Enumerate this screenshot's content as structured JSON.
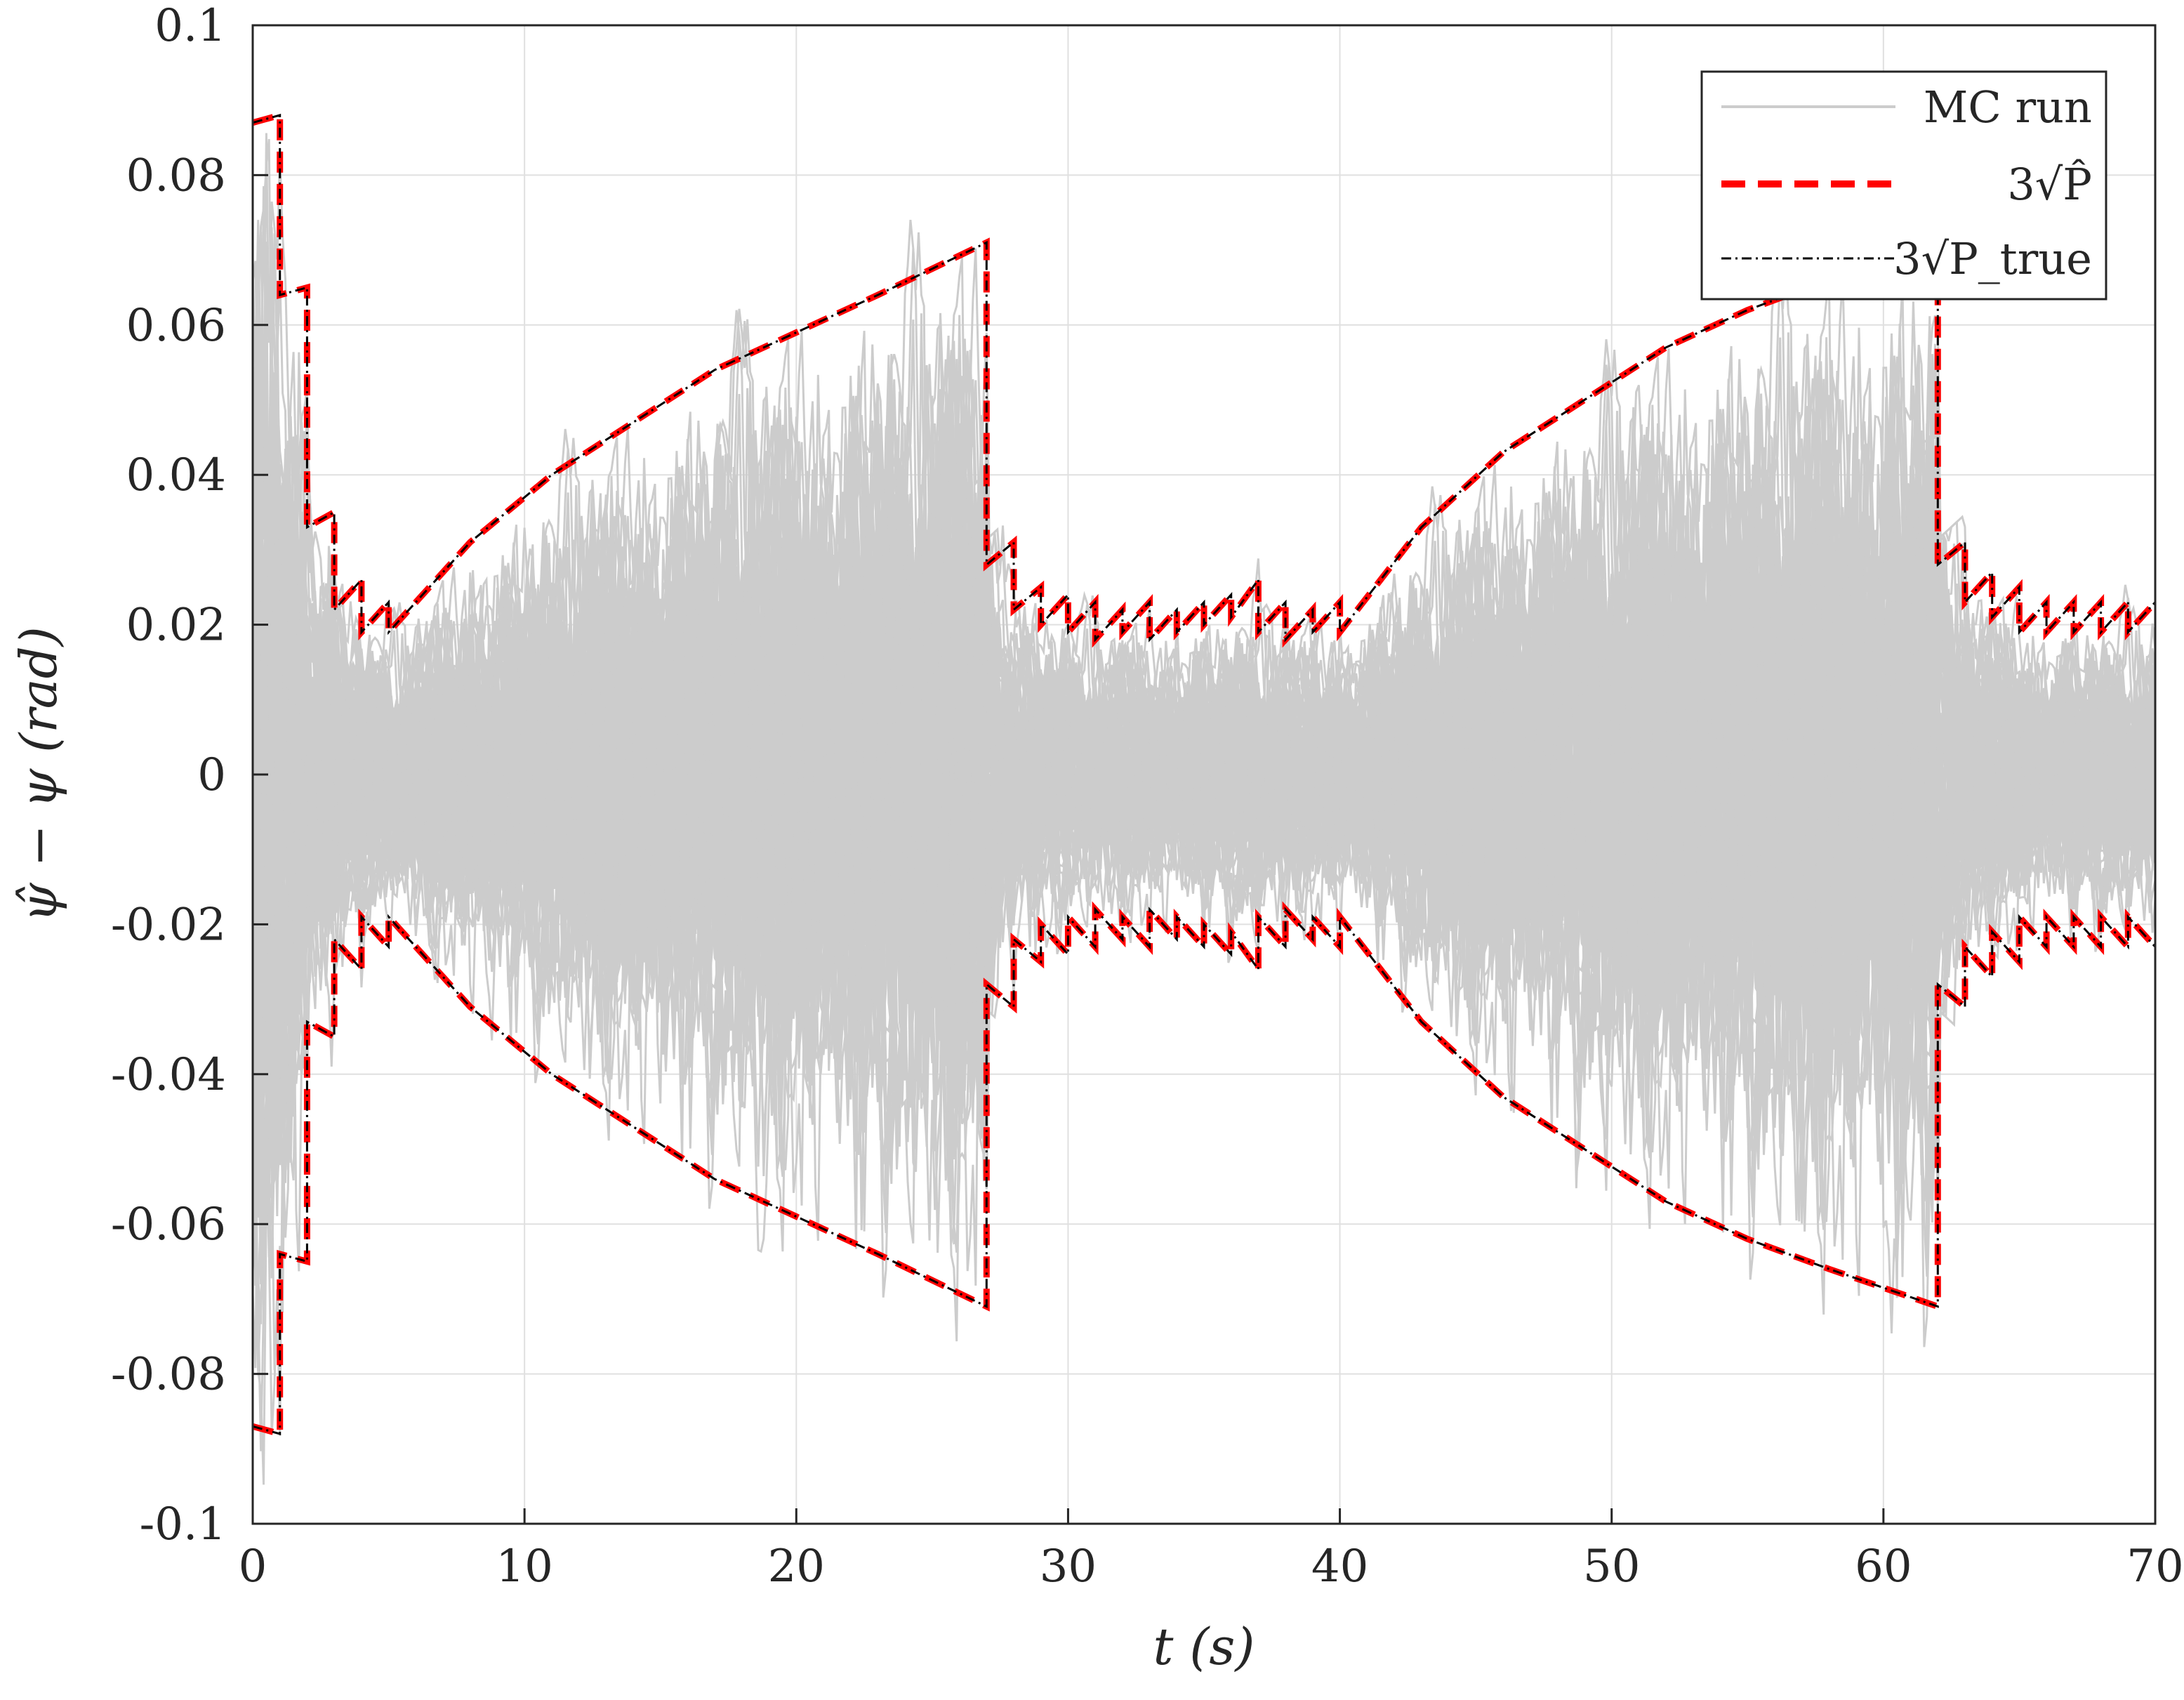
{
  "chart_data": {
    "type": "line",
    "title": "",
    "xlabel": "t (s)",
    "ylabel": "ψ̂ − ψ (rad)",
    "xlim": [
      0,
      70
    ],
    "ylim": [
      -0.1,
      0.1
    ],
    "x_ticks": [
      0,
      10,
      20,
      30,
      40,
      50,
      60,
      70
    ],
    "x_tick_labels": [
      "0",
      "10",
      "20",
      "30",
      "40",
      "50",
      "60",
      "70"
    ],
    "y_ticks": [
      0.1,
      0.08,
      0.06,
      0.04,
      0.02,
      0,
      -0.02,
      -0.04,
      -0.06,
      -0.08,
      -0.1
    ],
    "y_tick_labels": [
      "0.1",
      "0.08",
      "0.06",
      "0.04",
      "0.02",
      "0",
      "-0.02",
      "-0.04",
      "-0.06",
      "-0.08",
      "-0.1"
    ],
    "grid": true,
    "legend_position": "top-right",
    "series": [
      {
        "name": "MC run",
        "color": "#cccccc",
        "style": "solid",
        "description_values": "many Monte Carlo error traces bounded by the 3-sigma envelope"
      },
      {
        "name": "3√P̂",
        "color": "#ff0000",
        "style": "dashed",
        "x": [
          0,
          1,
          1,
          2,
          2,
          3,
          3,
          4,
          4,
          5,
          5,
          8,
          11,
          14,
          17,
          20,
          23,
          27,
          27,
          28,
          28,
          29,
          29,
          30,
          30,
          31,
          31,
          32,
          32,
          33,
          33,
          34,
          34,
          35,
          35,
          36,
          36,
          37,
          37,
          38,
          38,
          39,
          39,
          40,
          40,
          43,
          46,
          49,
          52,
          55,
          58,
          62,
          62,
          63,
          63,
          64,
          64,
          65,
          65,
          66,
          66,
          67,
          67,
          68,
          68,
          69,
          69,
          70
        ],
        "upper": [
          0.087,
          0.088,
          0.064,
          0.065,
          0.033,
          0.035,
          0.022,
          0.026,
          0.019,
          0.023,
          0.019,
          0.031,
          0.04,
          0.047,
          0.054,
          0.059,
          0.064,
          0.071,
          0.028,
          0.031,
          0.022,
          0.025,
          0.02,
          0.024,
          0.019,
          0.023,
          0.018,
          0.022,
          0.019,
          0.023,
          0.018,
          0.022,
          0.019,
          0.023,
          0.02,
          0.024,
          0.021,
          0.026,
          0.019,
          0.023,
          0.018,
          0.022,
          0.019,
          0.023,
          0.019,
          0.033,
          0.043,
          0.05,
          0.057,
          0.062,
          0.066,
          0.071,
          0.028,
          0.031,
          0.023,
          0.027,
          0.021,
          0.025,
          0.019,
          0.023,
          0.019,
          0.023,
          0.019,
          0.023,
          0.019,
          0.023,
          0.019,
          0.023
        ],
        "lower": [
          -0.087,
          -0.088,
          -0.064,
          -0.065,
          -0.033,
          -0.035,
          -0.022,
          -0.026,
          -0.019,
          -0.023,
          -0.019,
          -0.031,
          -0.04,
          -0.047,
          -0.054,
          -0.059,
          -0.064,
          -0.071,
          -0.028,
          -0.031,
          -0.022,
          -0.025,
          -0.02,
          -0.024,
          -0.019,
          -0.023,
          -0.018,
          -0.022,
          -0.019,
          -0.023,
          -0.018,
          -0.022,
          -0.019,
          -0.023,
          -0.02,
          -0.024,
          -0.021,
          -0.026,
          -0.019,
          -0.023,
          -0.018,
          -0.022,
          -0.019,
          -0.023,
          -0.019,
          -0.033,
          -0.043,
          -0.05,
          -0.057,
          -0.062,
          -0.066,
          -0.071,
          -0.028,
          -0.031,
          -0.023,
          -0.027,
          -0.021,
          -0.025,
          -0.019,
          -0.023,
          -0.019,
          -0.023,
          -0.019,
          -0.023,
          -0.019,
          -0.023,
          -0.019,
          -0.023
        ]
      },
      {
        "name": "3√P_true",
        "color": "#000000",
        "style": "dash-dot",
        "same_as": "3√P̂"
      }
    ]
  },
  "legend": {
    "items": [
      {
        "label": "MC run"
      },
      {
        "label": "3√P̂"
      },
      {
        "label": "3√P_true"
      }
    ]
  }
}
